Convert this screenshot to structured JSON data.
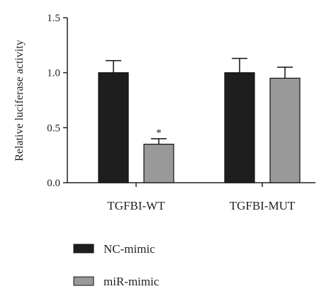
{
  "chart_data": {
    "type": "bar",
    "title": "",
    "xlabel": "",
    "ylabel": "Relative luciferase activity",
    "ylim": [
      0,
      1.5
    ],
    "yticks": [
      "0.0",
      "0.5",
      "1.0",
      "1.5"
    ],
    "categories": [
      "TGFBI-WT",
      "TGFBI-MUT"
    ],
    "series": [
      {
        "name": "NC-mimic",
        "values": [
          1.0,
          1.0
        ],
        "errors": [
          0.11,
          0.13
        ],
        "color": "#1e1e1e"
      },
      {
        "name": "miR-mimic",
        "values": [
          0.35,
          0.95
        ],
        "errors": [
          0.05,
          0.1
        ],
        "color": "#999999"
      }
    ],
    "annotations": [
      {
        "text": "*",
        "category_index": 0,
        "series_index": 1
      }
    ],
    "legend_position": "bottom-left",
    "grid": false
  }
}
